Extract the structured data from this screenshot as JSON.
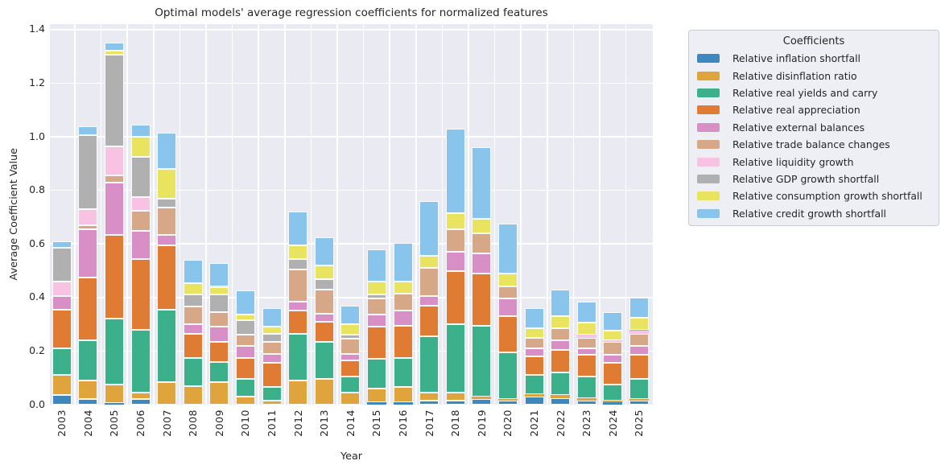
{
  "title": "Optimal models' average regression coefficients for normalized features",
  "axes": {
    "xlabel": "Year",
    "ylabel": "Average Coefficient Value",
    "yticks": [
      "0.0",
      "0.2",
      "0.4",
      "0.6",
      "0.8",
      "1.0",
      "1.2",
      "1.4"
    ]
  },
  "legend": {
    "title": "Coefficients"
  },
  "colors": {
    "plot_bg": "#eaeaf2",
    "grid": "#ffffff",
    "text": "#262626",
    "legend_bg": "#eeeef5",
    "legend_border": "#c9c9d4"
  },
  "chart_data": {
    "type": "bar",
    "stacked": true,
    "title": "Optimal models' average regression coefficients for normalized features",
    "xlabel": "Year",
    "ylabel": "Average Coefficient Value",
    "ylim": [
      0,
      1.4
    ],
    "grid": true,
    "legend_position": "right",
    "categories": [
      "2003",
      "2004",
      "2005",
      "2006",
      "2007",
      "2008",
      "2009",
      "2010",
      "2011",
      "2012",
      "2013",
      "2014",
      "2015",
      "2016",
      "2017",
      "2018",
      "2019",
      "2020",
      "2021",
      "2022",
      "2023",
      "2024",
      "2025"
    ],
    "series": [
      {
        "name": "Relative inflation shortfall",
        "color": "#3f88bd",
        "values": [
          0.035,
          0.02,
          0.005,
          0.02,
          0,
          0,
          0,
          0,
          0,
          0,
          0,
          0,
          0.01,
          0.01,
          0.015,
          0.015,
          0.02,
          0.015,
          0.03,
          0.025,
          0.015,
          0.01,
          0.015
        ]
      },
      {
        "name": "Relative disinflation ratio",
        "color": "#e0a43c",
        "values": [
          0.075,
          0.07,
          0.07,
          0.025,
          0.085,
          0.07,
          0.085,
          0.03,
          0.015,
          0.09,
          0.095,
          0.045,
          0.05,
          0.055,
          0.03,
          0.03,
          0.01,
          0.005,
          0.01,
          0.01,
          0.01,
          0.005,
          0.005
        ]
      },
      {
        "name": "Relative real yields and carry",
        "color": "#3cb08a",
        "values": [
          0.1,
          0.15,
          0.245,
          0.235,
          0.27,
          0.105,
          0.075,
          0.065,
          0.05,
          0.175,
          0.14,
          0.06,
          0.11,
          0.11,
          0.21,
          0.255,
          0.265,
          0.175,
          0.07,
          0.085,
          0.08,
          0.06,
          0.075
        ]
      },
      {
        "name": "Relative real appreciation",
        "color": "#df7b33",
        "values": [
          0.145,
          0.235,
          0.315,
          0.265,
          0.24,
          0.09,
          0.075,
          0.08,
          0.09,
          0.085,
          0.075,
          0.06,
          0.12,
          0.12,
          0.115,
          0.2,
          0.195,
          0.135,
          0.07,
          0.085,
          0.08,
          0.08,
          0.09
        ]
      },
      {
        "name": "Relative external balances",
        "color": "#d78fc6",
        "values": [
          0.05,
          0.18,
          0.195,
          0.105,
          0.04,
          0.035,
          0.055,
          0.045,
          0.035,
          0.035,
          0.03,
          0.025,
          0.045,
          0.055,
          0.035,
          0.07,
          0.075,
          0.065,
          0.03,
          0.035,
          0.025,
          0.03,
          0.035
        ]
      },
      {
        "name": "Relative trade balance changes",
        "color": "#d7a887",
        "values": [
          0,
          0.015,
          0.025,
          0.075,
          0.1,
          0.065,
          0.055,
          0.04,
          0.045,
          0.12,
          0.09,
          0.055,
          0.06,
          0.065,
          0.105,
          0.085,
          0.075,
          0.045,
          0.04,
          0.045,
          0.04,
          0.05,
          0.045
        ]
      },
      {
        "name": "Relative liquidity growth",
        "color": "#f8c3e2",
        "values": [
          0.055,
          0.06,
          0.11,
          0.05,
          0,
          0,
          0,
          0,
          0,
          0,
          0,
          0,
          0,
          0,
          0,
          0,
          0,
          0,
          0,
          0,
          0.01,
          0.005,
          0.01
        ]
      },
      {
        "name": "Relative GDP growth shortfall",
        "color": "#b0b0b0",
        "values": [
          0.125,
          0.275,
          0.34,
          0.15,
          0.035,
          0.045,
          0.065,
          0.055,
          0.03,
          0.04,
          0.04,
          0.015,
          0.015,
          0,
          0,
          0,
          0,
          0,
          0,
          0,
          0,
          0,
          0.005
        ]
      },
      {
        "name": "Relative consumption growth shortfall",
        "color": "#e9e460",
        "values": [
          0,
          0,
          0.015,
          0.075,
          0.11,
          0.045,
          0.03,
          0.02,
          0.025,
          0.05,
          0.05,
          0.04,
          0.05,
          0.045,
          0.045,
          0.06,
          0.055,
          0.05,
          0.035,
          0.045,
          0.045,
          0.035,
          0.045
        ]
      },
      {
        "name": "Relative credit growth shortfall",
        "color": "#88c4eb",
        "values": [
          0.025,
          0.035,
          0.03,
          0.045,
          0.135,
          0.085,
          0.09,
          0.09,
          0.07,
          0.125,
          0.105,
          0.07,
          0.12,
          0.145,
          0.205,
          0.315,
          0.265,
          0.185,
          0.075,
          0.1,
          0.08,
          0.07,
          0.075
        ]
      }
    ]
  }
}
